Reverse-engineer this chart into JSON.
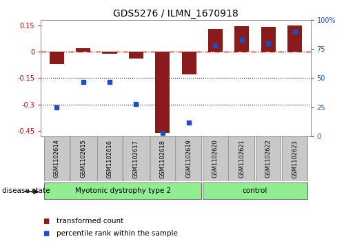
{
  "title": "GDS5276 / ILMN_1670918",
  "samples": [
    "GSM1102614",
    "GSM1102615",
    "GSM1102616",
    "GSM1102617",
    "GSM1102618",
    "GSM1102619",
    "GSM1102620",
    "GSM1102621",
    "GSM1102622",
    "GSM1102623"
  ],
  "transformed_count": [
    -0.07,
    0.02,
    -0.01,
    -0.04,
    -0.46,
    -0.13,
    0.13,
    0.145,
    0.14,
    0.15
  ],
  "percentile_rank": [
    25,
    47,
    47,
    28,
    3,
    12,
    78,
    83,
    80,
    90
  ],
  "disease_groups": [
    {
      "label": "Myotonic dystrophy type 2",
      "start": 0,
      "end": 5,
      "color": "#90EE90"
    },
    {
      "label": "control",
      "start": 6,
      "end": 9,
      "color": "#90EE90"
    }
  ],
  "bar_color": "#8B1A1A",
  "dot_color": "#1C4FC4",
  "ylim_left": [
    -0.48,
    0.18
  ],
  "ylim_right": [
    0,
    100
  ],
  "yticks_left": [
    0.15,
    0.0,
    -0.15,
    -0.3,
    -0.45
  ],
  "yticks_right": [
    100,
    75,
    50,
    25,
    0
  ],
  "hline_zero_color": "#CC0000",
  "hline_neg015_color": "black",
  "hline_neg030_color": "black",
  "legend_labels": [
    "transformed count",
    "percentile rank within the sample"
  ],
  "legend_colors": [
    "#8B1A1A",
    "#1C4FC4"
  ],
  "disease_state_label": "disease state",
  "sample_box_color": "#C8C8C8",
  "title_fontsize": 10,
  "tick_fontsize": 7,
  "label_fontsize": 7
}
